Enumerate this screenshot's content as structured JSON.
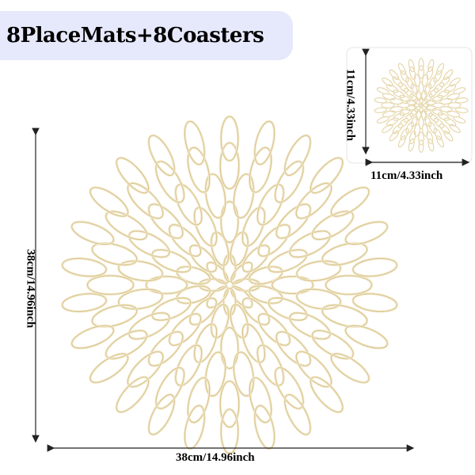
{
  "title": "8PlaceMats+8Coasters",
  "coaster": {
    "height_label": "11cm/4.33inch",
    "width_label": "11cm/4.33inch"
  },
  "placemat": {
    "height_label": "38cm/14.96inch",
    "width_label": "38cm/14.96inch"
  },
  "colors": {
    "gold_fill": "#f3ead0",
    "gold_stroke": "#d9c68f",
    "title_bg": "#e6e9fb"
  }
}
